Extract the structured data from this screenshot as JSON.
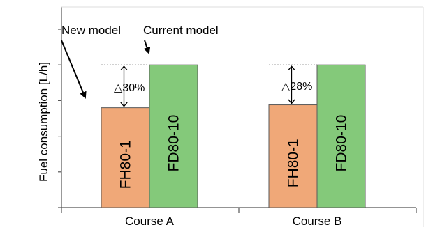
{
  "chart_data": {
    "type": "bar",
    "categories": [
      "Course A",
      "Course B"
    ],
    "series": [
      {
        "name": "New model",
        "models": [
          "FH80-1",
          "FH80-1"
        ],
        "values": [
          70,
          72
        ]
      },
      {
        "name": "Current model",
        "models": [
          "FD80-10",
          "FD80-10"
        ],
        "values": [
          100,
          100
        ]
      }
    ],
    "ylabel": "Fuel consumption [L/h]",
    "xlabel": "",
    "ylim": [
      0,
      125
    ],
    "reduction_labels": [
      "△30%",
      "△28%"
    ],
    "grid": false,
    "legend": "top-left annotations with arrows"
  },
  "colors": {
    "new_model": "#f0a878",
    "current_model": "#84c97a",
    "bar_edge": "#5a5a5a",
    "axis": "#555555"
  }
}
